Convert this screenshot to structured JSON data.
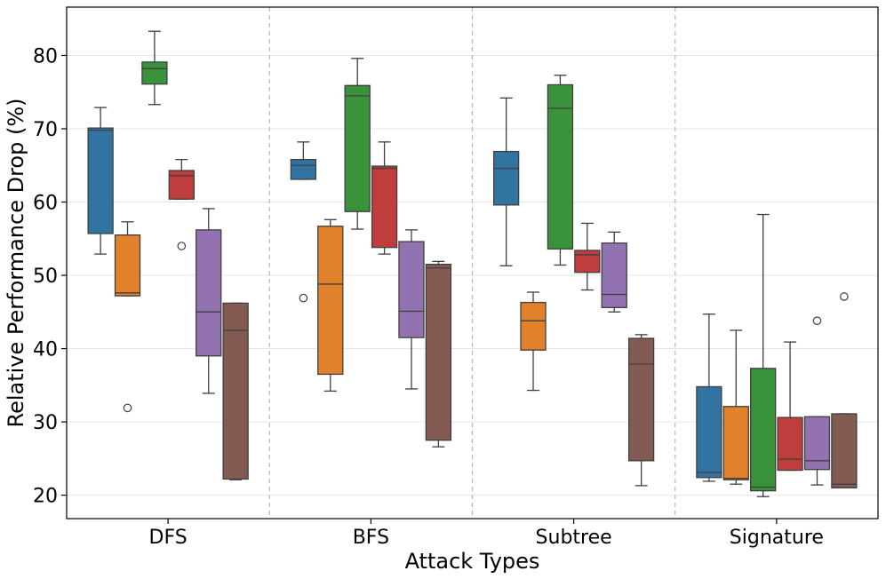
{
  "chart_data": {
    "type": "box",
    "xlabel": "Attack Types",
    "ylabel": "Relative Performance Drop (%)",
    "categories": [
      "DFS",
      "BFS",
      "Subtree",
      "Signature"
    ],
    "yticks": [
      20,
      30,
      40,
      50,
      60,
      70,
      80
    ],
    "ylim": [
      16.8,
      86.6
    ],
    "grid": "horizontal",
    "category_separators": "dashed",
    "series_colors": [
      "#3274a1",
      "#e1812c",
      "#3a923a",
      "#c03d3e",
      "#9372b2",
      "#845b53"
    ],
    "groups": [
      {
        "category": "DFS",
        "boxes": [
          {
            "whislo": 52.9,
            "q1": 55.7,
            "med": 69.8,
            "q3": 70.1,
            "whishi": 72.9,
            "fliers": []
          },
          {
            "whislo": 47.2,
            "q1": 47.2,
            "med": 47.6,
            "q3": 55.5,
            "whishi": 57.3,
            "fliers": [
              31.9
            ]
          },
          {
            "whislo": 73.3,
            "q1": 76.1,
            "med": 78.2,
            "q3": 79.1,
            "whishi": 83.3,
            "fliers": []
          },
          {
            "whislo": 60.4,
            "q1": 60.4,
            "med": 63.6,
            "q3": 64.3,
            "whishi": 65.8,
            "fliers": [
              54.0
            ]
          },
          {
            "whislo": 33.9,
            "q1": 39.0,
            "med": 45.0,
            "q3": 56.2,
            "whishi": 59.1,
            "fliers": []
          },
          {
            "whislo": 22.1,
            "q1": 22.2,
            "med": 42.5,
            "q3": 46.2,
            "whishi": 46.2,
            "fliers": []
          }
        ]
      },
      {
        "category": "BFS",
        "boxes": [
          {
            "whislo": 63.1,
            "q1": 63.1,
            "med": 65.0,
            "q3": 65.8,
            "whishi": 68.2,
            "fliers": [
              46.9
            ]
          },
          {
            "whislo": 34.2,
            "q1": 36.5,
            "med": 48.8,
            "q3": 56.7,
            "whishi": 57.6,
            "fliers": []
          },
          {
            "whislo": 56.3,
            "q1": 58.7,
            "med": 74.5,
            "q3": 75.9,
            "whishi": 79.6,
            "fliers": []
          },
          {
            "whislo": 52.9,
            "q1": 53.8,
            "med": 64.6,
            "q3": 64.9,
            "whishi": 68.2,
            "fliers": []
          },
          {
            "whislo": 34.5,
            "q1": 41.5,
            "med": 45.1,
            "q3": 54.6,
            "whishi": 56.2,
            "fliers": []
          },
          {
            "whislo": 26.6,
            "q1": 27.5,
            "med": 51.0,
            "q3": 51.5,
            "whishi": 51.9,
            "fliers": []
          }
        ]
      },
      {
        "category": "Subtree",
        "boxes": [
          {
            "whislo": 51.3,
            "q1": 59.6,
            "med": 64.6,
            "q3": 66.9,
            "whishi": 74.2,
            "fliers": []
          },
          {
            "whislo": 34.3,
            "q1": 39.8,
            "med": 43.8,
            "q3": 46.3,
            "whishi": 47.7,
            "fliers": []
          },
          {
            "whislo": 51.4,
            "q1": 53.6,
            "med": 72.8,
            "q3": 76.0,
            "whishi": 77.3,
            "fliers": []
          },
          {
            "whislo": 48.0,
            "q1": 50.4,
            "med": 52.8,
            "q3": 53.4,
            "whishi": 57.1,
            "fliers": []
          },
          {
            "whislo": 45.0,
            "q1": 45.6,
            "med": 47.4,
            "q3": 54.4,
            "whishi": 55.9,
            "fliers": []
          },
          {
            "whislo": 21.3,
            "q1": 24.7,
            "med": 37.9,
            "q3": 41.4,
            "whishi": 41.9,
            "fliers": []
          }
        ]
      },
      {
        "category": "Signature",
        "boxes": [
          {
            "whislo": 21.9,
            "q1": 22.4,
            "med": 23.1,
            "q3": 34.8,
            "whishi": 44.7,
            "fliers": []
          },
          {
            "whislo": 21.5,
            "q1": 22.1,
            "med": 22.3,
            "q3": 32.1,
            "whishi": 42.5,
            "fliers": []
          },
          {
            "whislo": 19.8,
            "q1": 20.6,
            "med": 21.1,
            "q3": 37.3,
            "whishi": 58.3,
            "fliers": []
          },
          {
            "whislo": 23.4,
            "q1": 23.4,
            "med": 24.9,
            "q3": 30.6,
            "whishi": 40.9,
            "fliers": []
          },
          {
            "whislo": 21.4,
            "q1": 23.5,
            "med": 24.7,
            "q3": 30.7,
            "whishi": 30.7,
            "fliers": [
              43.8
            ]
          },
          {
            "whislo": 21.0,
            "q1": 21.0,
            "med": 21.5,
            "q3": 31.1,
            "whishi": 31.1,
            "fliers": [
              47.1
            ]
          }
        ]
      }
    ]
  }
}
